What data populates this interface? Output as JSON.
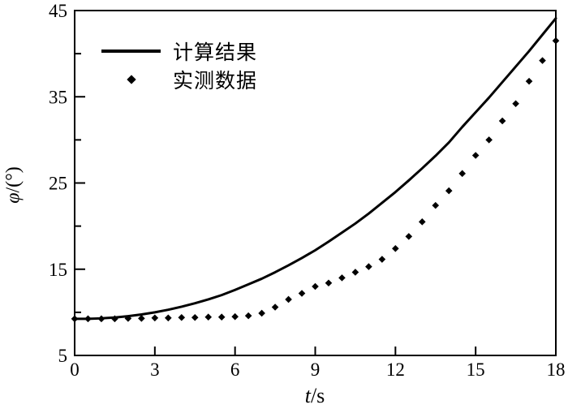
{
  "chart_data": {
    "type": "line",
    "title": "",
    "xlabel": "t/s",
    "xlabel_italic": "t",
    "xlabel_rest": "/s",
    "ylabel": "φ/(°)",
    "ylabel_italic": "φ",
    "ylabel_rest": "/(°)",
    "xlim": [
      0,
      18
    ],
    "ylim": [
      5,
      45
    ],
    "x_ticks": [
      0,
      3,
      6,
      9,
      12,
      15,
      18
    ],
    "y_ticks": {
      "labeled": [
        5,
        15,
        25,
        35,
        45
      ],
      "major": [
        15,
        25,
        35
      ],
      "minor": [
        10,
        20,
        30,
        40
      ]
    },
    "grid": false,
    "legend_position": "upper-left-inside",
    "ink_color": "#000000",
    "background_color": "#ffffff",
    "series": [
      {
        "name": "计算结果",
        "kind": "line",
        "x": [
          0,
          0.5,
          1,
          1.5,
          2,
          2.5,
          3,
          3.5,
          4,
          4.5,
          5,
          5.5,
          6,
          6.5,
          7,
          7.5,
          8,
          8.5,
          9,
          9.5,
          10,
          10.5,
          11,
          11.5,
          12,
          12.5,
          13,
          13.5,
          14,
          14.5,
          15,
          15.5,
          16,
          16.5,
          17,
          17.5,
          18
        ],
        "y": [
          9.25,
          9.25,
          9.3,
          9.4,
          9.55,
          9.75,
          10.0,
          10.3,
          10.65,
          11.05,
          11.5,
          12.0,
          12.6,
          13.25,
          13.9,
          14.65,
          15.45,
          16.3,
          17.2,
          18.2,
          19.25,
          20.3,
          21.45,
          22.7,
          23.95,
          25.3,
          26.7,
          28.15,
          29.7,
          31.5,
          33.2,
          34.9,
          36.7,
          38.5,
          40.3,
          42.2,
          44.1
        ]
      },
      {
        "name": "实测数据",
        "kind": "scatter",
        "marker": "diamond",
        "x": [
          0,
          0.5,
          1,
          1.5,
          2,
          2.5,
          3,
          3.5,
          4,
          4.5,
          5,
          5.5,
          6,
          6.5,
          7,
          7.5,
          8,
          8.5,
          9,
          9.5,
          10,
          10.5,
          11,
          11.5,
          12,
          12.5,
          13,
          13.5,
          14,
          14.5,
          15,
          15.5,
          16,
          16.5,
          17,
          17.5,
          18
        ],
        "y": [
          9.25,
          9.25,
          9.25,
          9.25,
          9.3,
          9.3,
          9.35,
          9.35,
          9.4,
          9.4,
          9.45,
          9.45,
          9.5,
          9.6,
          9.9,
          10.6,
          11.5,
          12.2,
          13.0,
          13.4,
          14.0,
          14.65,
          15.3,
          16.15,
          17.4,
          18.8,
          20.5,
          22.4,
          24.1,
          26.1,
          28.2,
          30.0,
          32.2,
          34.2,
          36.8,
          39.2,
          41.5
        ]
      }
    ]
  }
}
